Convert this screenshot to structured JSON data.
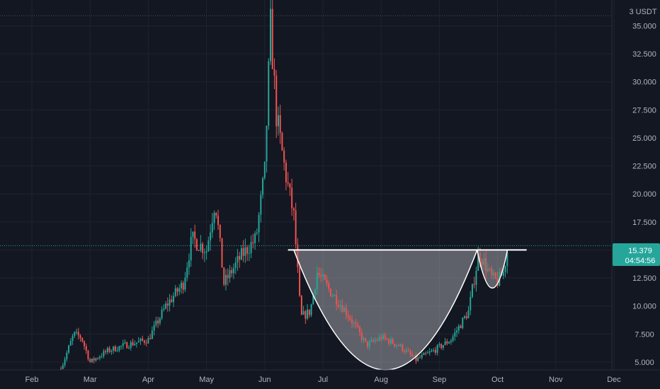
{
  "chart_data": {
    "type": "candlestick",
    "unit_label": "3 USDT",
    "y_ticks": [
      "35.000",
      "32.500",
      "30.000",
      "27.500",
      "25.000",
      "22.500",
      "20.000",
      "17.500",
      "15.000",
      "12.500",
      "10.000",
      "7.500",
      "5.000"
    ],
    "y_tick_values": [
      35,
      32.5,
      30,
      27.5,
      25,
      22.5,
      20,
      17.5,
      15,
      12.5,
      10,
      7.5,
      5
    ],
    "x_ticks": [
      "Feb",
      "Mar",
      "Apr",
      "May",
      "Jun",
      "Jul",
      "Aug",
      "Sep",
      "Oct",
      "Nov",
      "Dec"
    ],
    "ylim": [
      4.3,
      37.3
    ],
    "last_price": "15.379",
    "last_price_value": 15.379,
    "countdown": "04:54:56",
    "ath_value": 35.9,
    "colors": {
      "up": "#26a69a",
      "down": "#ef5350",
      "bg": "#131722",
      "grid": "#1f2330",
      "text": "#b2b5be"
    },
    "series_points": [
      {
        "t": 0.5,
        "p": 4.4
      },
      {
        "t": 0.72,
        "p": 7.5
      },
      {
        "t": 0.85,
        "p": 7.2
      },
      {
        "t": 1.0,
        "p": 5.0
      },
      {
        "t": 1.3,
        "p": 6.0
      },
      {
        "t": 1.6,
        "p": 6.5
      },
      {
        "t": 2.0,
        "p": 7.0
      },
      {
        "t": 2.3,
        "p": 10.0
      },
      {
        "t": 2.6,
        "p": 12.0
      },
      {
        "t": 2.75,
        "p": 16.0
      },
      {
        "t": 3.0,
        "p": 15.0
      },
      {
        "t": 3.15,
        "p": 19.5
      },
      {
        "t": 3.3,
        "p": 12.0
      },
      {
        "t": 3.6,
        "p": 14.5
      },
      {
        "t": 3.85,
        "p": 16.0
      },
      {
        "t": 4.0,
        "p": 22.0
      },
      {
        "t": 4.1,
        "p": 35.0
      },
      {
        "t": 4.2,
        "p": 27.0
      },
      {
        "t": 4.35,
        "p": 22.0
      },
      {
        "t": 4.5,
        "p": 18.0
      },
      {
        "t": 4.62,
        "p": 9.0
      },
      {
        "t": 4.78,
        "p": 9.5
      },
      {
        "t": 4.9,
        "p": 13.0
      },
      {
        "t": 5.1,
        "p": 11.5
      },
      {
        "t": 5.4,
        "p": 9.5
      },
      {
        "t": 5.75,
        "p": 6.5
      },
      {
        "t": 6.0,
        "p": 7.2
      },
      {
        "t": 6.3,
        "p": 6.5
      },
      {
        "t": 6.6,
        "p": 5.2
      },
      {
        "t": 6.9,
        "p": 6.0
      },
      {
        "t": 7.2,
        "p": 7.0
      },
      {
        "t": 7.5,
        "p": 9.5
      },
      {
        "t": 7.68,
        "p": 14.8
      },
      {
        "t": 7.9,
        "p": 12.5
      },
      {
        "t": 8.0,
        "p": 12.2
      },
      {
        "t": 8.1,
        "p": 13.0
      },
      {
        "t": 8.17,
        "p": 15.0
      }
    ],
    "candles_per_month": 30,
    "neckline_value": 15.0,
    "annotations": [
      {
        "type": "neckline",
        "value": 15.0,
        "t_start": 4.4,
        "t_end": 8.5
      },
      {
        "type": "cup",
        "t_start": 4.5,
        "t_end": 7.65,
        "bottom_value": 4.3,
        "rim_value": 15.0
      },
      {
        "type": "handle",
        "t_start": 7.65,
        "t_end": 8.17,
        "bottom_value": 11.6,
        "rim_value": 15.0
      }
    ]
  }
}
